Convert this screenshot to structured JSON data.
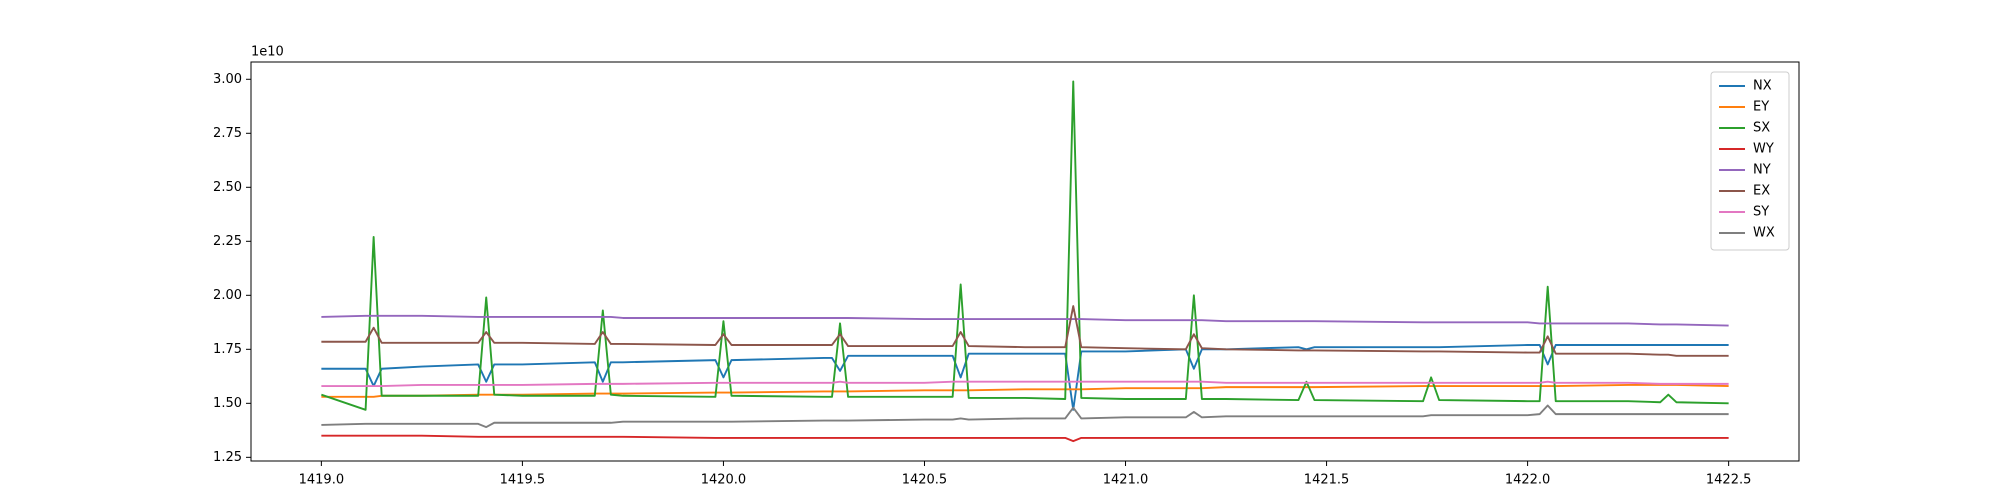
{
  "chart_data": {
    "type": "line",
    "y_offset_label": "1e10",
    "x": [
      1419.0,
      1419.11,
      1419.13,
      1419.15,
      1419.25,
      1419.39,
      1419.41,
      1419.43,
      1419.5,
      1419.68,
      1419.7,
      1419.72,
      1419.75,
      1419.98,
      1420.0,
      1420.02,
      1420.25,
      1420.27,
      1420.29,
      1420.31,
      1420.5,
      1420.57,
      1420.59,
      1420.61,
      1420.75,
      1420.85,
      1420.87,
      1420.89,
      1421.0,
      1421.15,
      1421.17,
      1421.19,
      1421.25,
      1421.43,
      1421.45,
      1421.47,
      1421.74,
      1421.76,
      1421.78,
      1422.0,
      1422.03,
      1422.05,
      1422.07,
      1422.25,
      1422.33,
      1422.35,
      1422.37,
      1422.5
    ],
    "series": [
      {
        "name": "NX",
        "color": "#1f77b4",
        "values": [
          1.66,
          1.66,
          1.58,
          1.66,
          1.67,
          1.68,
          1.6,
          1.68,
          1.68,
          1.69,
          1.6,
          1.69,
          1.69,
          1.7,
          1.62,
          1.7,
          1.71,
          1.71,
          1.65,
          1.72,
          1.72,
          1.72,
          1.62,
          1.73,
          1.73,
          1.73,
          1.47,
          1.74,
          1.74,
          1.75,
          1.66,
          1.75,
          1.75,
          1.76,
          1.75,
          1.76,
          1.76,
          1.76,
          1.76,
          1.77,
          1.77,
          1.68,
          1.77,
          1.77,
          1.77,
          1.77,
          1.77,
          1.77
        ]
      },
      {
        "name": "EY",
        "color": "#ff7f0e",
        "values": [
          1.53,
          1.53,
          1.53,
          1.535,
          1.535,
          1.54,
          1.54,
          1.54,
          1.54,
          1.545,
          1.545,
          1.545,
          1.545,
          1.55,
          1.55,
          1.55,
          1.555,
          1.555,
          1.555,
          1.555,
          1.56,
          1.56,
          1.56,
          1.56,
          1.565,
          1.565,
          1.565,
          1.565,
          1.57,
          1.57,
          1.57,
          1.57,
          1.575,
          1.575,
          1.575,
          1.575,
          1.58,
          1.58,
          1.58,
          1.58,
          1.58,
          1.58,
          1.58,
          1.585,
          1.585,
          1.585,
          1.585,
          1.58
        ]
      },
      {
        "name": "SX",
        "color": "#2ca02c",
        "values": [
          1.54,
          1.47,
          2.27,
          1.535,
          1.535,
          1.535,
          1.99,
          1.54,
          1.535,
          1.535,
          1.93,
          1.54,
          1.535,
          1.53,
          1.88,
          1.535,
          1.53,
          1.53,
          1.87,
          1.53,
          1.53,
          1.53,
          2.05,
          1.525,
          1.525,
          1.52,
          2.99,
          1.525,
          1.52,
          1.52,
          2.0,
          1.52,
          1.52,
          1.515,
          1.6,
          1.515,
          1.51,
          1.62,
          1.515,
          1.51,
          1.51,
          2.04,
          1.51,
          1.51,
          1.505,
          1.54,
          1.505,
          1.5
        ]
      },
      {
        "name": "WY",
        "color": "#d62728",
        "values": [
          1.35,
          1.35,
          1.35,
          1.35,
          1.35,
          1.345,
          1.345,
          1.345,
          1.345,
          1.345,
          1.345,
          1.345,
          1.345,
          1.34,
          1.34,
          1.34,
          1.34,
          1.34,
          1.34,
          1.34,
          1.34,
          1.34,
          1.34,
          1.34,
          1.34,
          1.34,
          1.325,
          1.34,
          1.34,
          1.34,
          1.34,
          1.34,
          1.34,
          1.34,
          1.34,
          1.34,
          1.34,
          1.34,
          1.34,
          1.34,
          1.34,
          1.34,
          1.34,
          1.34,
          1.34,
          1.34,
          1.34,
          1.34
        ]
      },
      {
        "name": "NY",
        "color": "#9467bd",
        "values": [
          1.9,
          1.905,
          1.905,
          1.905,
          1.905,
          1.9,
          1.9,
          1.9,
          1.9,
          1.9,
          1.9,
          1.9,
          1.895,
          1.895,
          1.895,
          1.895,
          1.895,
          1.895,
          1.895,
          1.895,
          1.89,
          1.89,
          1.89,
          1.89,
          1.89,
          1.89,
          1.89,
          1.89,
          1.885,
          1.885,
          1.885,
          1.885,
          1.88,
          1.88,
          1.88,
          1.88,
          1.875,
          1.875,
          1.875,
          1.875,
          1.87,
          1.87,
          1.87,
          1.87,
          1.865,
          1.865,
          1.865,
          1.86
        ]
      },
      {
        "name": "EX",
        "color": "#8c564b",
        "values": [
          1.785,
          1.785,
          1.85,
          1.78,
          1.78,
          1.78,
          1.83,
          1.78,
          1.78,
          1.775,
          1.83,
          1.775,
          1.775,
          1.77,
          1.82,
          1.77,
          1.77,
          1.77,
          1.82,
          1.765,
          1.765,
          1.765,
          1.83,
          1.765,
          1.76,
          1.76,
          1.95,
          1.76,
          1.755,
          1.75,
          1.82,
          1.755,
          1.75,
          1.745,
          1.745,
          1.745,
          1.74,
          1.74,
          1.74,
          1.735,
          1.735,
          1.81,
          1.73,
          1.73,
          1.725,
          1.725,
          1.72,
          1.72
        ]
      },
      {
        "name": "SY",
        "color": "#e377c2",
        "values": [
          1.58,
          1.58,
          1.58,
          1.58,
          1.585,
          1.585,
          1.585,
          1.585,
          1.585,
          1.59,
          1.59,
          1.59,
          1.59,
          1.595,
          1.595,
          1.595,
          1.595,
          1.595,
          1.6,
          1.595,
          1.595,
          1.6,
          1.6,
          1.6,
          1.6,
          1.6,
          1.6,
          1.6,
          1.6,
          1.6,
          1.6,
          1.6,
          1.595,
          1.595,
          1.595,
          1.595,
          1.595,
          1.595,
          1.595,
          1.595,
          1.595,
          1.6,
          1.595,
          1.595,
          1.59,
          1.59,
          1.59,
          1.59
        ]
      },
      {
        "name": "WX",
        "color": "#7f7f7f",
        "values": [
          1.4,
          1.405,
          1.405,
          1.405,
          1.405,
          1.405,
          1.39,
          1.41,
          1.41,
          1.41,
          1.41,
          1.41,
          1.415,
          1.415,
          1.415,
          1.415,
          1.42,
          1.42,
          1.42,
          1.42,
          1.425,
          1.425,
          1.43,
          1.425,
          1.43,
          1.43,
          1.48,
          1.43,
          1.435,
          1.435,
          1.46,
          1.435,
          1.44,
          1.44,
          1.44,
          1.44,
          1.44,
          1.445,
          1.445,
          1.445,
          1.45,
          1.49,
          1.45,
          1.45,
          1.45,
          1.45,
          1.45,
          1.45
        ]
      }
    ],
    "xlim": [
      1418.825,
      1422.675
    ],
    "ylim": [
      1.233,
      3.08
    ],
    "xticks": [
      {
        "value": 1419.0,
        "label": "1419.0"
      },
      {
        "value": 1419.5,
        "label": "1419.5"
      },
      {
        "value": 1420.0,
        "label": "1420.0"
      },
      {
        "value": 1420.5,
        "label": "1420.5"
      },
      {
        "value": 1421.0,
        "label": "1421.0"
      },
      {
        "value": 1421.5,
        "label": "1421.5"
      },
      {
        "value": 1422.0,
        "label": "1422.0"
      },
      {
        "value": 1422.5,
        "label": "1422.5"
      }
    ],
    "yticks": [
      {
        "value": 1.25,
        "label": "1.25"
      },
      {
        "value": 1.5,
        "label": "1.50"
      },
      {
        "value": 1.75,
        "label": "1.75"
      },
      {
        "value": 2.0,
        "label": "2.00"
      },
      {
        "value": 2.25,
        "label": "2.25"
      },
      {
        "value": 2.5,
        "label": "2.50"
      },
      {
        "value": 2.75,
        "label": "2.75"
      },
      {
        "value": 3.0,
        "label": "3.00"
      }
    ],
    "grid": false,
    "legend_position": "upper-right"
  }
}
